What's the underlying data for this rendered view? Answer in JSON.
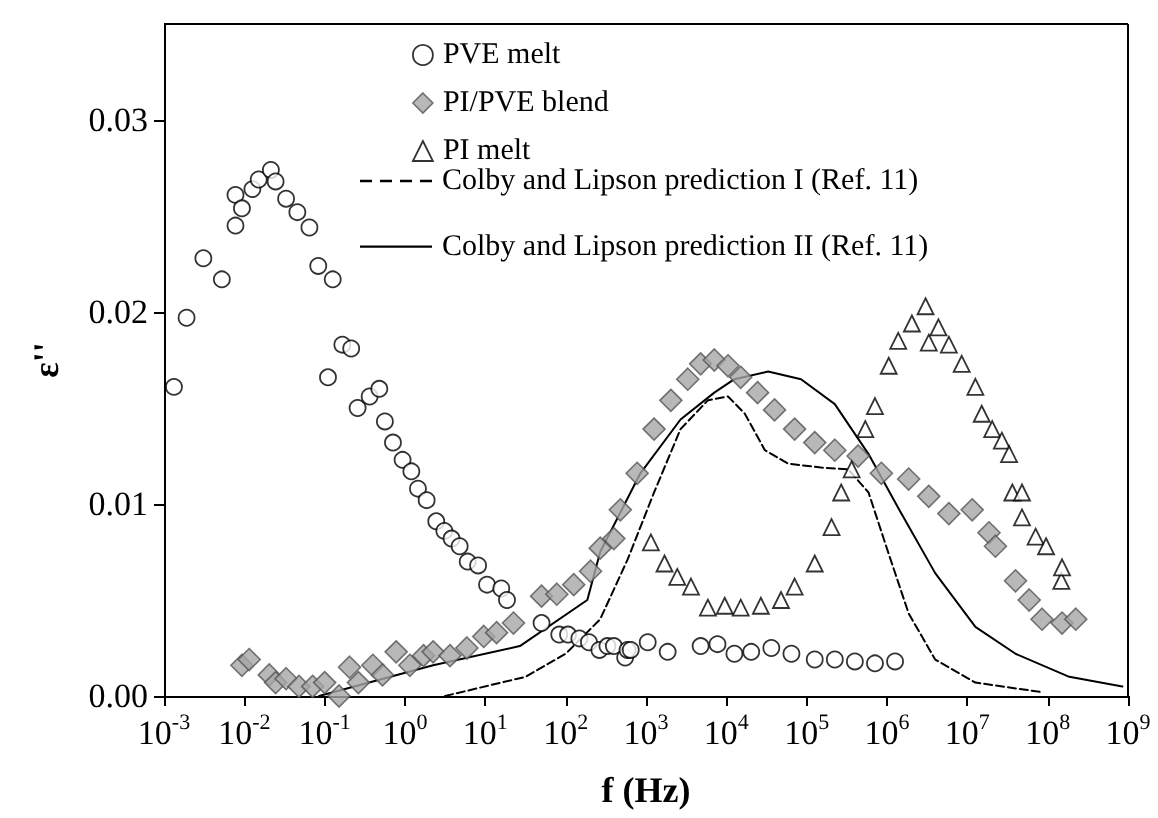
{
  "chart_data": {
    "type": "scatter",
    "xlabel": "f (Hz)",
    "ylabel": "ε''",
    "log": "x",
    "xlim": [
      0.001,
      1000000000
    ],
    "xticks": [
      {
        "value": 0.001,
        "label": "10$^{-3}$"
      },
      {
        "value": 0.01,
        "label": "10$^{-2}$"
      },
      {
        "value": 0.1,
        "label": "10$^{-1}$"
      },
      {
        "value": 1,
        "label": "10$^{0}$"
      },
      {
        "value": 10,
        "label": "10$^{1}$"
      },
      {
        "value": 100,
        "label": "10$^{2}$"
      },
      {
        "value": 1000,
        "label": "10$^{3}$"
      },
      {
        "value": 10000,
        "label": "10$^{4}$"
      },
      {
        "value": 100000,
        "label": "10$^{5}$"
      },
      {
        "value": 1000000,
        "label": "10$^{6}$"
      },
      {
        "value": 10000000,
        "label": "10$^{7}$"
      },
      {
        "value": 100000000,
        "label": "10$^{8}$"
      },
      {
        "value": 1000000000,
        "label": "10$^{9}$"
      }
    ],
    "ylim": [
      0,
      0.035
    ],
    "yticks": [
      {
        "value": 0,
        "label": "0.00"
      },
      {
        "value": 0.01,
        "label": "0.01"
      },
      {
        "value": 0.02,
        "label": "0.02"
      },
      {
        "value": 0.03,
        "label": "0.03"
      }
    ],
    "grid": false,
    "legend": "top right",
    "series": [
      {
        "name": "PVE melt",
        "marker": "circle",
        "color": "#000000",
        "x": [
          0.00133,
          0.00191,
          0.00309,
          0.00525,
          0.00776,
          0.00776,
          0.00933,
          0.0126,
          0.0151,
          0.0214,
          0.0245,
          0.0331,
          0.0457,
          0.0646,
          0.0832,
          0.11,
          0.126,
          0.166,
          0.214,
          0.257,
          0.363,
          0.479,
          0.562,
          0.708,
          0.933,
          1.2,
          1.45,
          1.86,
          2.45,
          3.09,
          3.8,
          4.79,
          6.03,
          8.13,
          10.5,
          15.8,
          18.6,
          50.1,
          83.2,
          107,
          148,
          195,
          263,
          331,
          398,
          550,
          589,
          646,
          1050,
          1860,
          4790,
          7760,
          12600,
          20400,
          36300,
          64600,
          126000,
          224000,
          398000,
          708000,
          1260000
        ],
        "values": [
          0.0161,
          0.0197,
          0.0228,
          0.0217,
          0.0245,
          0.0261,
          0.0254,
          0.0264,
          0.0269,
          0.0274,
          0.0268,
          0.0259,
          0.0252,
          0.0244,
          0.0224,
          0.0166,
          0.0217,
          0.0183,
          0.0181,
          0.015,
          0.0156,
          0.016,
          0.0143,
          0.0132,
          0.0123,
          0.0117,
          0.0108,
          0.0102,
          0.0091,
          0.0086,
          0.0082,
          0.0078,
          0.007,
          0.0068,
          0.0058,
          0.0056,
          0.005,
          0.0038,
          0.0032,
          0.0032,
          0.003,
          0.0028,
          0.0024,
          0.0026,
          0.0026,
          0.002,
          0.0024,
          0.0024,
          0.0028,
          0.0023,
          0.0026,
          0.0027,
          0.0022,
          0.0023,
          0.0025,
          0.0022,
          0.0019,
          0.0019,
          0.0018,
          0.0017,
          0.0018
        ]
      },
      {
        "name": "PI/PVE blend",
        "marker": "diamond",
        "color": "#a6a6a6",
        "x": [
          0.00933,
          0.0115,
          0.0204,
          0.0245,
          0.0331,
          0.0479,
          0.0708,
          0.1,
          0.151,
          0.204,
          0.263,
          0.398,
          0.525,
          0.776,
          1.15,
          1.7,
          2.24,
          3.63,
          5.89,
          9.55,
          13.8,
          22.4,
          50.1,
          77.6,
          126,
          204,
          269,
          398,
          479,
          776,
          1260,
          2040,
          3310,
          4790,
          7080,
          10500,
          15100,
          24500,
          39800,
          70800,
          126000,
          224000,
          437000,
          851000,
          1860000,
          3310000,
          5890000,
          11500000,
          18600000,
          22400000,
          39800000,
          58900000,
          85100000,
          151000000,
          224000000
        ],
        "values": [
          0.0016,
          0.0019,
          0.0011,
          0.0007,
          0.0009,
          0.0005,
          0.0005,
          0.0007,
          0,
          0.0015,
          0.0007,
          0.0016,
          0.0011,
          0.0023,
          0.0016,
          0.0021,
          0.0023,
          0.0021,
          0.0025,
          0.0031,
          0.0033,
          0.0038,
          0.0052,
          0.0053,
          0.0058,
          0.0065,
          0.0077,
          0.0082,
          0.0097,
          0.0116,
          0.0139,
          0.0154,
          0.0165,
          0.0173,
          0.0175,
          0.0172,
          0.0166,
          0.0158,
          0.0149,
          0.0139,
          0.0132,
          0.0128,
          0.0125,
          0.0116,
          0.0113,
          0.0104,
          0.0095,
          0.0097,
          0.0085,
          0.0078,
          0.006,
          0.005,
          0.004,
          0.0038,
          0.004
        ]
      },
      {
        "name": "PI melt",
        "marker": "triangle",
        "color": "#000000",
        "x": [
          1150,
          1700,
          2450,
          3630,
          5890,
          9550,
          15100,
          26900,
          47900,
          70800,
          126000,
          204000,
          269000,
          363000,
          537000,
          708000,
          1050000,
          1380000,
          2040000,
          3020000,
          3310000,
          4370000,
          5890000,
          8510000,
          12600000,
          15100000,
          20400000,
          26900000,
          33100000,
          36300000,
          47900000,
          47900000,
          70800000,
          95500000,
          148000000,
          151000000
        ],
        "values": [
          0.008,
          0.0069,
          0.0062,
          0.0057,
          0.0046,
          0.0047,
          0.0046,
          0.0047,
          0.005,
          0.0057,
          0.0069,
          0.0088,
          0.0106,
          0.0118,
          0.0139,
          0.0151,
          0.0172,
          0.0185,
          0.0194,
          0.0203,
          0.0184,
          0.0192,
          0.0183,
          0.0173,
          0.0161,
          0.0147,
          0.0139,
          0.0133,
          0.0126,
          0.0106,
          0.0106,
          0.0093,
          0.0083,
          0.0078,
          0.006,
          0.0067
        ]
      },
      {
        "name": "Colby and Lipson prediction I (Ref. 11)",
        "type": "line",
        "marker": "none",
        "line_style": "dashed",
        "color": "#000000",
        "x": [
          3.16,
          31.6,
          100,
          269,
          589,
          1260,
          2690,
          5890,
          10500,
          17000,
          30200,
          58900,
          151000,
          331000,
          589000,
          1050000,
          1860000,
          3980000,
          12600000,
          85100000
        ],
        "values": [
          0,
          0.001,
          0.0022,
          0.004,
          0.0071,
          0.0106,
          0.0139,
          0.0154,
          0.0156,
          0.0147,
          0.0128,
          0.0121,
          0.0119,
          0.0118,
          0.0106,
          0.0074,
          0.0043,
          0.0019,
          0.0007,
          0.0002
        ]
      },
      {
        "name": "Colby and Lipson prediction II (Ref. 11)",
        "type": "line",
        "marker": "none",
        "line_style": "solid",
        "color": "#000000",
        "x": [
          0.0851,
          2.24,
          26.9,
          186,
          269,
          851,
          2690,
          7080,
          12600,
          33100,
          85100,
          224000,
          589000,
          1510000,
          3980000,
          12600000,
          39800000,
          186000000,
          851000000
        ],
        "values": [
          0,
          0.0016,
          0.0026,
          0.005,
          0.0075,
          0.0116,
          0.0144,
          0.0158,
          0.0165,
          0.0169,
          0.0165,
          0.0152,
          0.0126,
          0.0095,
          0.0064,
          0.0036,
          0.0022,
          0.001,
          0.0005
        ]
      }
    ]
  }
}
